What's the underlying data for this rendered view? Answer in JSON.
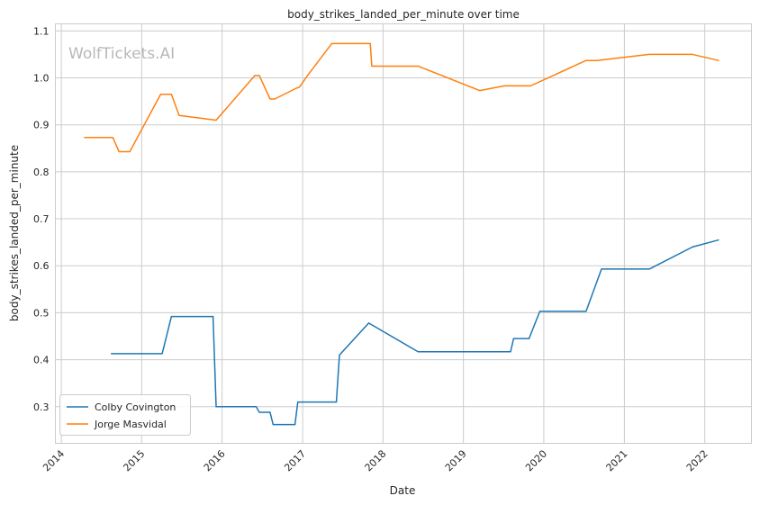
{
  "chart_data": {
    "type": "line",
    "title": "body_strikes_landed_per_minute over time",
    "xlabel": "Date",
    "ylabel": "body_strikes_landed_per_minute",
    "watermark": "WolfTickets.AI",
    "x_tick_labels": [
      "2014",
      "2015",
      "2016",
      "2017",
      "2018",
      "2019",
      "2020",
      "2021",
      "2022"
    ],
    "y_tick_labels": [
      "0.3",
      "0.4",
      "0.5",
      "0.6",
      "0.7",
      "0.8",
      "0.9",
      "1.0",
      "1.1"
    ],
    "xlim": [
      "2013-12-05",
      "2022-08-01"
    ],
    "ylim": [
      0.222,
      1.115
    ],
    "grid": true,
    "legend_position": "lower-left",
    "series": [
      {
        "name": "Colby Covington",
        "color": "#1f77b4",
        "points": [
          [
            "2014-08-16",
            0.413
          ],
          [
            "2015-04-04",
            0.413
          ],
          [
            "2015-05-16",
            0.492
          ],
          [
            "2015-11-21",
            0.492
          ],
          [
            "2015-12-05",
            0.3
          ],
          [
            "2016-06-04",
            0.3
          ],
          [
            "2016-06-18",
            0.288
          ],
          [
            "2016-08-06",
            0.288
          ],
          [
            "2016-08-20",
            0.262
          ],
          [
            "2016-11-27",
            0.262
          ],
          [
            "2016-12-10",
            0.31
          ],
          [
            "2017-06-03",
            0.31
          ],
          [
            "2017-06-17",
            0.41
          ],
          [
            "2017-10-28",
            0.478
          ],
          [
            "2018-06-09",
            0.417
          ],
          [
            "2019-08-03",
            0.417
          ],
          [
            "2019-08-17",
            0.445
          ],
          [
            "2019-10-26",
            0.445
          ],
          [
            "2019-12-14",
            0.503
          ],
          [
            "2020-07-11",
            0.503
          ],
          [
            "2020-09-19",
            0.593
          ],
          [
            "2021-04-24",
            0.593
          ],
          [
            "2021-11-06",
            0.64
          ],
          [
            "2022-03-05",
            0.655
          ]
        ]
      },
      {
        "name": "Jorge Masvidal",
        "color": "#ff7f0e",
        "points": [
          [
            "2014-04-16",
            0.873
          ],
          [
            "2014-08-23",
            0.873
          ],
          [
            "2014-09-20",
            0.843
          ],
          [
            "2014-11-08",
            0.843
          ],
          [
            "2015-03-28",
            0.965
          ],
          [
            "2015-05-16",
            0.965
          ],
          [
            "2015-06-20",
            0.92
          ],
          [
            "2015-12-05",
            0.91
          ],
          [
            "2016-05-29",
            1.005
          ],
          [
            "2016-06-18",
            1.005
          ],
          [
            "2016-08-06",
            0.955
          ],
          [
            "2016-08-27",
            0.955
          ],
          [
            "2016-12-03",
            0.978
          ],
          [
            "2016-12-17",
            0.98
          ],
          [
            "2017-01-28",
            1.008
          ],
          [
            "2017-05-13",
            1.073
          ],
          [
            "2017-11-04",
            1.073
          ],
          [
            "2017-11-11",
            1.025
          ],
          [
            "2018-06-09",
            1.025
          ],
          [
            "2019-03-16",
            0.973
          ],
          [
            "2019-07-06",
            0.983
          ],
          [
            "2019-11-02",
            0.983
          ],
          [
            "2020-07-11",
            1.037
          ],
          [
            "2020-08-29",
            1.037
          ],
          [
            "2021-04-24",
            1.05
          ],
          [
            "2021-11-06",
            1.05
          ],
          [
            "2022-03-05",
            1.037
          ]
        ]
      }
    ]
  }
}
